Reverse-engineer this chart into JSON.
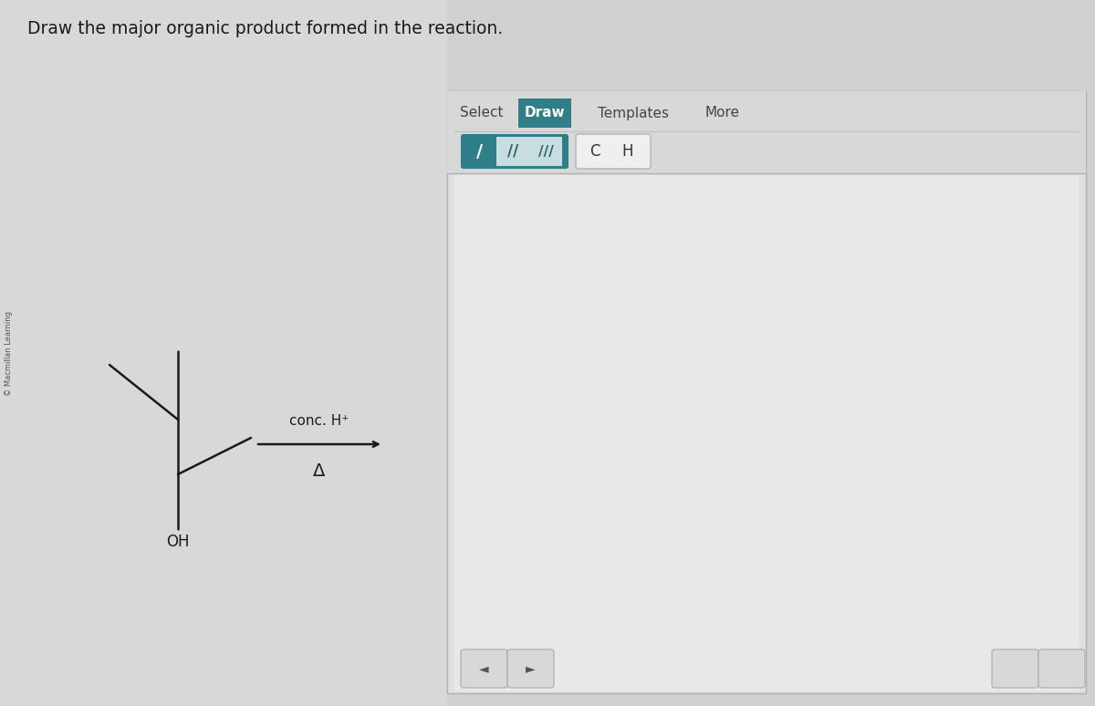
{
  "bg_color": "#c8c8c8",
  "left_area_color": "#d4d4d4",
  "right_panel_color": "#d8d8d8",
  "right_panel_inner": "#e2e2e2",
  "title_text": "Draw the major organic product formed in the reaction.",
  "title_fontsize": 13.5,
  "title_color": "#1a1a1a",
  "sidebar_text": "© Macmillan Learning",
  "reagent_text": "conc. H⁺",
  "delta_text": "Δ",
  "oh_text": "OH",
  "tab_select": "Select",
  "tab_draw": "Draw",
  "tab_templates": "Templates",
  "tab_more": "More",
  "draw_tab_color": "#2e7f8a",
  "draw_tab_text": "#ffffff",
  "bond_active_color": "#2e7f8a",
  "bond_active_text": "#ffffff",
  "bond_inactive_bg": "#e8e8e8",
  "bond_inactive_text": "#333333",
  "bond_group_border": "#2e7f8a",
  "elem_btn_bg": "#efefef",
  "elem_btn_border": "#bbbbbb",
  "bottom_btn_bg": "#d8d8d8",
  "bottom_btn_border": "#aaaaaa"
}
